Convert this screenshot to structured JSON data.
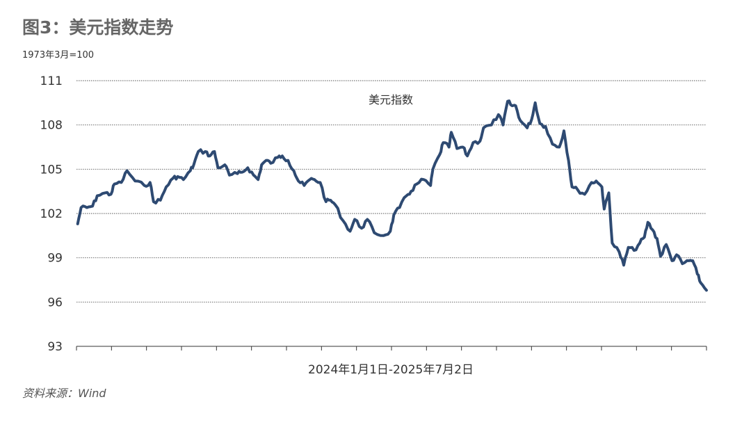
{
  "figure": {
    "title": "图3：美元指数走势",
    "base_note": "1973年3月=100",
    "source": "资料来源：Wind"
  },
  "chart_data": {
    "type": "line",
    "title": "",
    "xlabel": "2024年1月1日-2025年7月2日",
    "ylabel": "",
    "ylim": [
      93,
      111
    ],
    "yticks": [
      93,
      96,
      99,
      102,
      105,
      108,
      111
    ],
    "ytick_labels": [
      "93",
      "96",
      "99",
      "102",
      "105",
      "108",
      "111"
    ],
    "xlim": [
      "2024-01-01",
      "2025-07-02"
    ],
    "grid": "horizontal dotted",
    "x_tick_count": 19,
    "line_color": "#2e4a72",
    "series": [
      {
        "name": "美元指数",
        "points": [
          [
            "2024-01-02",
            101.3
          ],
          [
            "2024-01-05",
            102.4
          ],
          [
            "2024-01-10",
            102.4
          ],
          [
            "2024-01-15",
            102.5
          ],
          [
            "2024-01-19",
            103.2
          ],
          [
            "2024-01-26",
            103.4
          ],
          [
            "2024-01-31",
            103.3
          ],
          [
            "2024-02-03",
            104.0
          ],
          [
            "2024-02-09",
            104.1
          ],
          [
            "2024-02-14",
            104.9
          ],
          [
            "2024-02-21",
            104.2
          ],
          [
            "2024-02-29",
            103.9
          ],
          [
            "2024-03-05",
            104.1
          ],
          [
            "2024-03-08",
            102.8
          ],
          [
            "2024-03-14",
            102.9
          ],
          [
            "2024-03-19",
            103.8
          ],
          [
            "2024-03-25",
            104.4
          ],
          [
            "2024-03-29",
            104.5
          ],
          [
            "2024-04-03",
            104.3
          ],
          [
            "2024-04-09",
            104.9
          ],
          [
            "2024-04-12",
            105.3
          ],
          [
            "2024-04-16",
            106.2
          ],
          [
            "2024-04-22",
            106.2
          ],
          [
            "2024-04-26",
            105.9
          ],
          [
            "2024-04-30",
            106.2
          ],
          [
            "2024-05-03",
            105.1
          ],
          [
            "2024-05-09",
            105.3
          ],
          [
            "2024-05-13",
            104.6
          ],
          [
            "2024-05-20",
            104.7
          ],
          [
            "2024-05-24",
            104.8
          ],
          [
            "2024-05-29",
            105.1
          ],
          [
            "2024-06-03",
            104.6
          ],
          [
            "2024-06-07",
            104.3
          ],
          [
            "2024-06-10",
            105.3
          ],
          [
            "2024-06-14",
            105.6
          ],
          [
            "2024-06-18",
            105.4
          ],
          [
            "2024-06-24",
            105.8
          ],
          [
            "2024-06-28",
            105.9
          ],
          [
            "2024-07-03",
            105.6
          ],
          [
            "2024-07-08",
            104.9
          ],
          [
            "2024-07-12",
            104.2
          ],
          [
            "2024-07-17",
            103.9
          ],
          [
            "2024-07-22",
            104.3
          ],
          [
            "2024-07-26",
            104.3
          ],
          [
            "2024-07-31",
            104.1
          ],
          [
            "2024-08-05",
            102.8
          ],
          [
            "2024-08-09",
            102.9
          ],
          [
            "2024-08-13",
            102.6
          ],
          [
            "2024-08-20",
            101.5
          ],
          [
            "2024-08-26",
            100.8
          ],
          [
            "2024-08-30",
            101.6
          ],
          [
            "2024-09-05",
            101.0
          ],
          [
            "2024-09-10",
            101.6
          ],
          [
            "2024-09-16",
            100.7
          ],
          [
            "2024-09-24",
            100.5
          ],
          [
            "2024-09-30",
            100.8
          ],
          [
            "2024-10-03",
            101.9
          ],
          [
            "2024-10-08",
            102.4
          ],
          [
            "2024-10-14",
            103.2
          ],
          [
            "2024-10-18",
            103.5
          ],
          [
            "2024-10-23",
            104.0
          ],
          [
            "2024-10-29",
            104.3
          ],
          [
            "2024-11-04",
            103.9
          ],
          [
            "2024-11-06",
            105.0
          ],
          [
            "2024-11-12",
            106.0
          ],
          [
            "2024-11-15",
            106.8
          ],
          [
            "2024-11-20",
            106.5
          ],
          [
            "2024-11-22",
            107.5
          ],
          [
            "2024-11-27",
            106.4
          ],
          [
            "2024-12-02",
            106.5
          ],
          [
            "2024-12-06",
            105.9
          ],
          [
            "2024-12-11",
            106.8
          ],
          [
            "2024-12-17",
            106.9
          ],
          [
            "2024-12-20",
            107.8
          ],
          [
            "2024-12-27",
            108.0
          ],
          [
            "2025-01-02",
            108.7
          ],
          [
            "2025-01-06",
            108.0
          ],
          [
            "2025-01-10",
            109.6
          ],
          [
            "2025-01-14",
            109.3
          ],
          [
            "2025-01-17",
            109.3
          ],
          [
            "2025-01-21",
            108.3
          ],
          [
            "2025-01-27",
            107.8
          ],
          [
            "2025-01-31",
            108.4
          ],
          [
            "2025-02-03",
            109.5
          ],
          [
            "2025-02-07",
            108.1
          ],
          [
            "2025-02-12",
            107.9
          ],
          [
            "2025-02-18",
            106.7
          ],
          [
            "2025-02-24",
            106.5
          ],
          [
            "2025-02-28",
            107.6
          ],
          [
            "2025-03-04",
            105.6
          ],
          [
            "2025-03-07",
            103.8
          ],
          [
            "2025-03-12",
            103.6
          ],
          [
            "2025-03-18",
            103.3
          ],
          [
            "2025-03-24",
            104.1
          ],
          [
            "2025-03-28",
            104.2
          ],
          [
            "2025-04-02",
            103.8
          ],
          [
            "2025-04-04",
            102.3
          ],
          [
            "2025-04-08",
            103.4
          ],
          [
            "2025-04-11",
            100.0
          ],
          [
            "2025-04-17",
            99.4
          ],
          [
            "2025-04-21",
            98.5
          ],
          [
            "2025-04-25",
            99.7
          ],
          [
            "2025-04-30",
            99.5
          ],
          [
            "2025-05-05",
            100.0
          ],
          [
            "2025-05-09",
            100.4
          ],
          [
            "2025-05-12",
            101.4
          ],
          [
            "2025-05-16",
            100.9
          ],
          [
            "2025-05-20",
            100.3
          ],
          [
            "2025-05-23",
            99.1
          ],
          [
            "2025-05-28",
            99.9
          ],
          [
            "2025-06-02",
            98.8
          ],
          [
            "2025-06-06",
            99.2
          ],
          [
            "2025-06-11",
            98.6
          ],
          [
            "2025-06-17",
            98.8
          ],
          [
            "2025-06-20",
            98.8
          ],
          [
            "2025-06-24",
            97.9
          ],
          [
            "2025-06-27",
            97.3
          ],
          [
            "2025-07-02",
            96.8
          ]
        ]
      }
    ]
  }
}
